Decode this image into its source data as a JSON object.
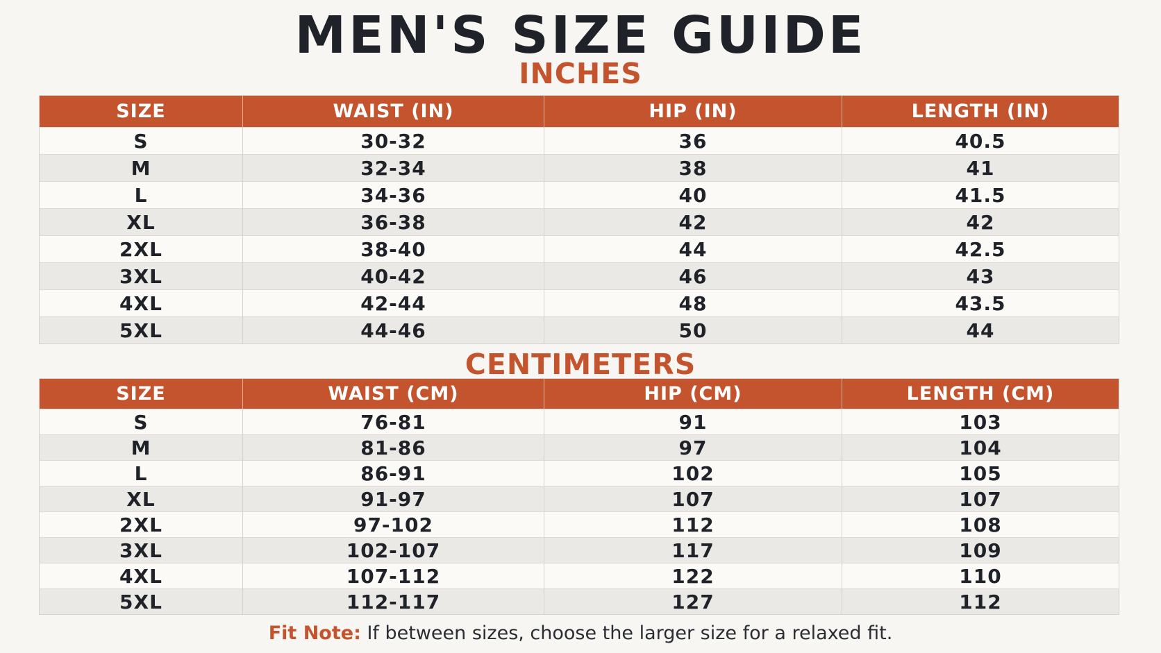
{
  "title": "MEN'S SIZE GUIDE",
  "inches": {
    "heading": "INCHES",
    "columns": [
      "SIZE",
      "WAIST (IN)",
      "HIP (IN)",
      "LENGTH (IN)"
    ],
    "rows": [
      [
        "S",
        "30-32",
        "36",
        "40.5"
      ],
      [
        "M",
        "32-34",
        "38",
        "41"
      ],
      [
        "L",
        "34-36",
        "40",
        "41.5"
      ],
      [
        "XL",
        "36-38",
        "42",
        "42"
      ],
      [
        "2XL",
        "38-40",
        "44",
        "42.5"
      ],
      [
        "3XL",
        "40-42",
        "46",
        "43"
      ],
      [
        "4XL",
        "42-44",
        "48",
        "43.5"
      ],
      [
        "5XL",
        "44-46",
        "50",
        "44"
      ]
    ]
  },
  "centimeters": {
    "heading": "CENTIMETERS",
    "columns": [
      "SIZE",
      "WAIST (CM)",
      "HIP (CM)",
      "LENGTH (CM)"
    ],
    "rows": [
      [
        "S",
        "76-81",
        "91",
        "103"
      ],
      [
        "M",
        "81-86",
        "97",
        "104"
      ],
      [
        "L",
        "86-91",
        "102",
        "105"
      ],
      [
        "XL",
        "91-97",
        "107",
        "107"
      ],
      [
        "2XL",
        "97-102",
        "112",
        "108"
      ],
      [
        "3XL",
        "102-107",
        "117",
        "109"
      ],
      [
        "4XL",
        "107-112",
        "122",
        "110"
      ],
      [
        "5XL",
        "112-117",
        "127",
        "112"
      ]
    ]
  },
  "fit_note": {
    "label": "Fit Note:",
    "text": " If between sizes, choose the larger size for a relaxed fit."
  },
  "colors": {
    "accent": "#c4542d",
    "title_text": "#1f2329",
    "row_alt": "#ebe9e5",
    "background": "#f8f6f2"
  }
}
